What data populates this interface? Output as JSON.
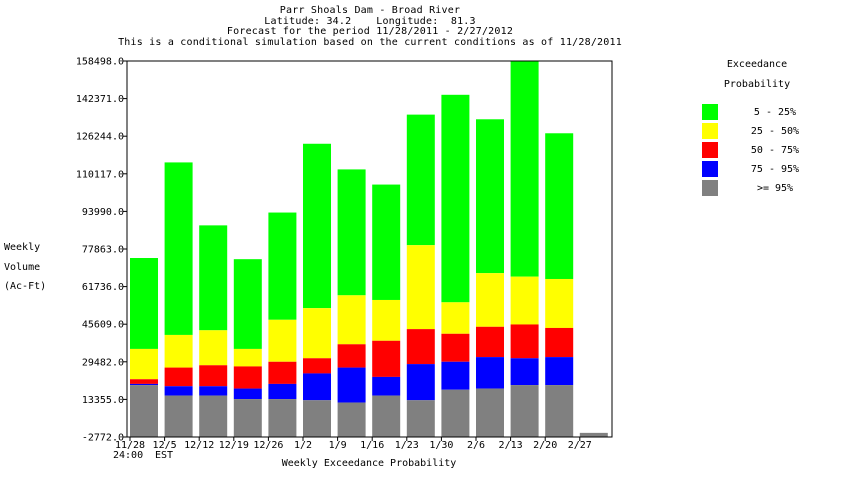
{
  "header": {
    "line1": "Parr Shoals Dam - Broad River",
    "line2": "Latitude: 34.2    Longitude:  81.3",
    "line3": "Forecast for the period 11/28/2011 - 2/27/2012",
    "line4": "This is a conditional simulation based on the current conditions as of 11/28/2011"
  },
  "y_axis": {
    "line1": "Weekly",
    "line2": "Volume",
    "line3": "(Ac-Ft)"
  },
  "x_axis_label": "Weekly Exceedance Probability",
  "time_note": {
    "line1": "24:00",
    "line2": "EST"
  },
  "legend": {
    "title_line1": "Exceedance",
    "title_line2": "Probability",
    "items": [
      {
        "label": "5 - 25%",
        "color": "#00ff00"
      },
      {
        "label": "25 - 50%",
        "color": "#ffff00"
      },
      {
        "label": "50 - 75%",
        "color": "#ff0000"
      },
      {
        "label": "75 - 95%",
        "color": "#0000ff"
      },
      {
        "label": ">= 95%",
        "color": "#808080"
      }
    ]
  },
  "chart_data": {
    "type": "bar",
    "stacked": true,
    "title": "Parr Shoals Dam - Broad River",
    "xlabel": "Weekly Exceedance Probability",
    "ylabel": "Weekly Volume (Ac-Ft)",
    "ylim": [
      -2772.0,
      158498.0
    ],
    "yticks": [
      "158498.0",
      "142371.0",
      "126244.0",
      "110117.0",
      "93990.0",
      "77863.0",
      "61736.0",
      "45609.0",
      "29482.0",
      "13355.0",
      "-2772.0"
    ],
    "categories": [
      "11/28",
      "12/5",
      "12/12",
      "12/19",
      "12/26",
      "1/2",
      "1/9",
      "1/16",
      "1/23",
      "1/30",
      "2/6",
      "2/13",
      "2/20",
      "2/27"
    ],
    "levels": [
      {
        "name": ">= 95%",
        "color": "#808080",
        "values": [
          19500,
          15000,
          15000,
          13500,
          13500,
          13000,
          12000,
          15000,
          13000,
          17500,
          18000,
          19500,
          19500,
          -1000
        ]
      },
      {
        "name": "75 - 95%",
        "color": "#0000ff",
        "values": [
          20000,
          19000,
          19000,
          18000,
          20000,
          24500,
          27000,
          23000,
          28500,
          29500,
          31500,
          31000,
          31500,
          -1000
        ]
      },
      {
        "name": "50 - 75%",
        "color": "#ff0000",
        "values": [
          22000,
          27000,
          28000,
          27500,
          29500,
          31000,
          37000,
          38500,
          43500,
          41500,
          44500,
          45500,
          44000,
          -1000
        ]
      },
      {
        "name": "25 - 50%",
        "color": "#ffff00",
        "values": [
          35000,
          41000,
          43000,
          35000,
          47500,
          52500,
          58000,
          56000,
          79500,
          55000,
          67500,
          66000,
          65000,
          -1000
        ]
      },
      {
        "name": "5 - 25%",
        "color": "#00ff00",
        "values": [
          74000,
          115000,
          88000,
          73500,
          93500,
          123000,
          112000,
          105500,
          135500,
          144000,
          133500,
          158500,
          127500,
          -1000
        ]
      }
    ]
  }
}
